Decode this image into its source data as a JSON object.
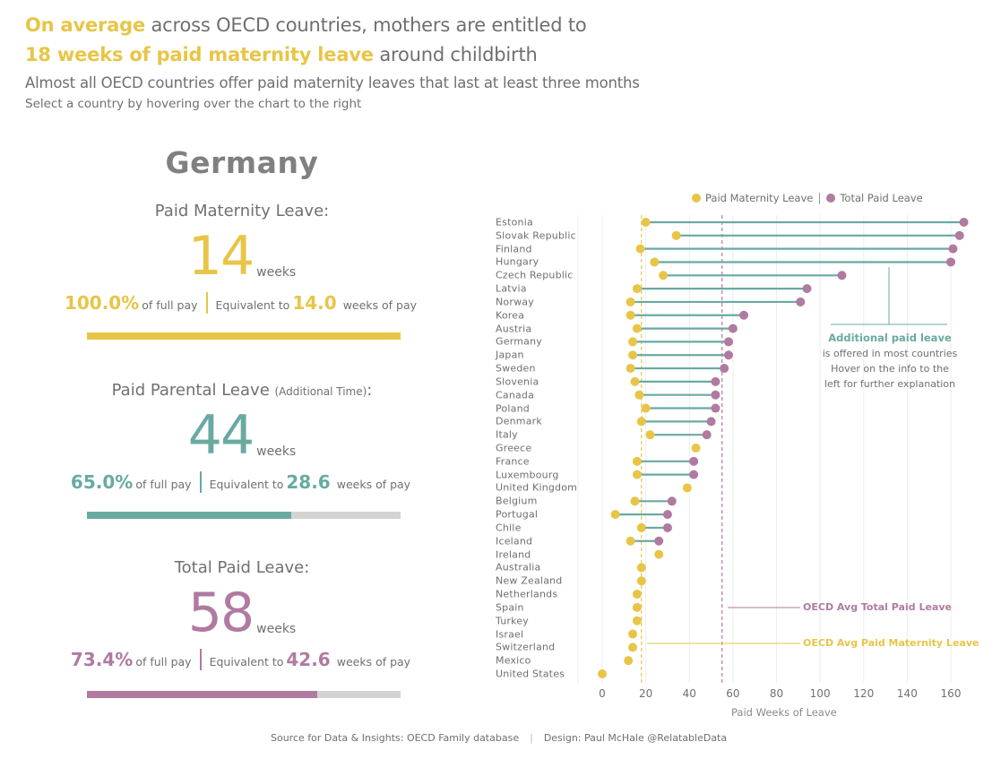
{
  "header": {
    "line1_highlight": "On average",
    "line1_rest": " across OECD countries, mothers are entitled to",
    "line2_highlight": "18 weeks of paid maternity leave",
    "line2_rest": " around childbirth",
    "subtitle": "Almost all OECD countries offer paid maternity leaves that last at least three months",
    "instruction": "Select a country by hovering over the chart to the right"
  },
  "colors": {
    "maternity": "#e8c547",
    "parental": "#68aaa2",
    "total": "#b07aa1",
    "bar_bg": "#d3d3d3"
  },
  "selected": {
    "country": "Germany",
    "maternity": {
      "title": "Paid Maternity Leave:",
      "weeks": "14",
      "unit": "weeks",
      "pct": "100.0%",
      "pct_label": "of full pay",
      "eq_label": "Equivalent to",
      "eq": "14.0",
      "eq_unit": "weeks of pay",
      "fraction": 1.0
    },
    "parental": {
      "title": "Paid Parental Leave ",
      "title_small": "(Additional Time)",
      "title_end": ":",
      "weeks": "44",
      "unit": "weeks",
      "pct": "65.0%",
      "pct_label": "of full pay",
      "eq_label": "Equivalent to",
      "eq": "28.6",
      "eq_unit": "weeks of pay",
      "fraction": 0.65
    },
    "total": {
      "title": "Total Paid Leave:",
      "weeks": "58",
      "unit": "weeks",
      "pct": "73.4%",
      "pct_label": "of full pay",
      "eq_label": "Equivalent to",
      "eq": "42.6",
      "eq_unit": "weeks of pay",
      "fraction": 0.734
    }
  },
  "chart_data": {
    "type": "dumbbell",
    "legend": [
      "Paid Maternity Leave",
      "Total Paid Leave"
    ],
    "legend_position": "top-right",
    "xlabel": "Paid Weeks of Leave",
    "xlim": [
      0,
      165
    ],
    "xticks": [
      0,
      20,
      40,
      60,
      80,
      100,
      120,
      140,
      160
    ],
    "grid": true,
    "averages": {
      "maternity": 18,
      "total": 55
    },
    "avg_labels": {
      "total": "OECD Avg Total Paid Leave",
      "maternity": "OECD Avg Paid Maternity Leave"
    },
    "annotation": {
      "title": "Additional paid leave",
      "lines": [
        "is offered in most countries",
        "Hover on the info to the",
        "left for further explanation"
      ]
    },
    "countries": [
      {
        "name": "Estonia",
        "maternity": 20,
        "total": 166
      },
      {
        "name": "Slovak Republic",
        "maternity": 34,
        "total": 164
      },
      {
        "name": "Finland",
        "maternity": 17.5,
        "total": 161
      },
      {
        "name": "Hungary",
        "maternity": 24,
        "total": 160
      },
      {
        "name": "Czech Republic",
        "maternity": 28,
        "total": 110
      },
      {
        "name": "Latvia",
        "maternity": 16,
        "total": 94
      },
      {
        "name": "Norway",
        "maternity": 13,
        "total": 91
      },
      {
        "name": "Korea",
        "maternity": 13,
        "total": 65
      },
      {
        "name": "Austria",
        "maternity": 16,
        "total": 60
      },
      {
        "name": "Germany",
        "maternity": 14,
        "total": 58
      },
      {
        "name": "Japan",
        "maternity": 14,
        "total": 58
      },
      {
        "name": "Sweden",
        "maternity": 13,
        "total": 56
      },
      {
        "name": "Slovenia",
        "maternity": 15,
        "total": 52
      },
      {
        "name": "Canada",
        "maternity": 17,
        "total": 52
      },
      {
        "name": "Poland",
        "maternity": 20,
        "total": 52
      },
      {
        "name": "Denmark",
        "maternity": 18,
        "total": 50
      },
      {
        "name": "Italy",
        "maternity": 22,
        "total": 48
      },
      {
        "name": "Greece",
        "maternity": 43,
        "total": 43
      },
      {
        "name": "France",
        "maternity": 16,
        "total": 42
      },
      {
        "name": "Luxembourg",
        "maternity": 16,
        "total": 42
      },
      {
        "name": "United Kingdom",
        "maternity": 39,
        "total": 39
      },
      {
        "name": "Belgium",
        "maternity": 15,
        "total": 32
      },
      {
        "name": "Portugal",
        "maternity": 6,
        "total": 30
      },
      {
        "name": "Chile",
        "maternity": 18,
        "total": 30
      },
      {
        "name": "Iceland",
        "maternity": 13,
        "total": 26
      },
      {
        "name": "Ireland",
        "maternity": 26,
        "total": 26
      },
      {
        "name": "Australia",
        "maternity": 18,
        "total": 18
      },
      {
        "name": "New Zealand",
        "maternity": 18,
        "total": 18
      },
      {
        "name": "Netherlands",
        "maternity": 16,
        "total": 16
      },
      {
        "name": "Spain",
        "maternity": 16,
        "total": 16
      },
      {
        "name": "Turkey",
        "maternity": 16,
        "total": 16
      },
      {
        "name": "Israel",
        "maternity": 14,
        "total": 14
      },
      {
        "name": "Switzerland",
        "maternity": 14,
        "total": 14
      },
      {
        "name": "Mexico",
        "maternity": 12,
        "total": 12
      },
      {
        "name": "United States",
        "maternity": 0,
        "total": 0
      }
    ]
  },
  "footer": {
    "source": "Source for Data & Insights: OECD Family database",
    "separator": "|",
    "design": "Design: Paul McHale @RelatableData"
  }
}
